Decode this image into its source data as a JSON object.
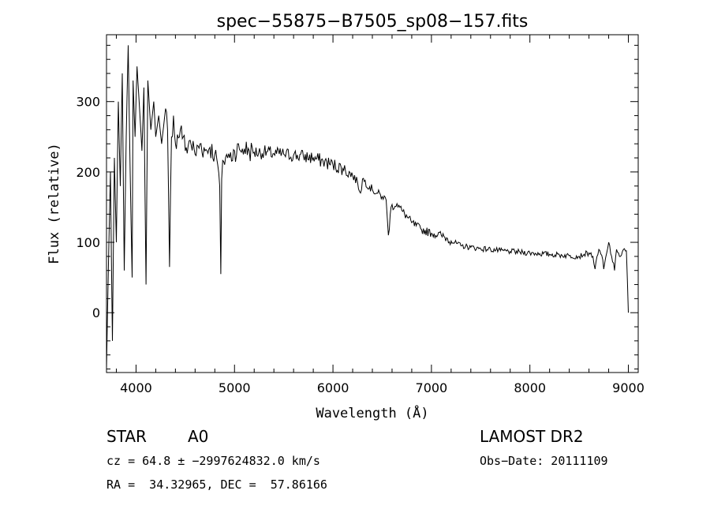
{
  "chart_data": {
    "type": "line",
    "title": "spec−55875−B7505_sp08−157.fits",
    "xlabel": "Wavelength (Å)",
    "ylabel": "Flux (relative)",
    "xlim": [
      3700,
      9100
    ],
    "ylim": [
      -85,
      395
    ],
    "xticks": [
      4000,
      5000,
      6000,
      7000,
      8000,
      9000
    ],
    "yticks": [
      0,
      100,
      200,
      300
    ],
    "grid": false,
    "series": [
      {
        "x": [
          3700,
          3720,
          3740,
          3760,
          3780,
          3800,
          3820,
          3840,
          3860,
          3880,
          3900,
          3920,
          3940,
          3960,
          3970,
          3990,
          4010,
          4040,
          4060,
          4080,
          4101,
          4120,
          4150,
          4180,
          4200,
          4230,
          4260,
          4300,
          4320,
          4340,
          4360,
          4380,
          4400,
          4450,
          4480,
          4500,
          4550,
          4600,
          4650,
          4700,
          4750,
          4800,
          4830,
          4850,
          4861,
          4870,
          4890,
          4920,
          4950,
          5000,
          5050,
          5100,
          5150,
          5200,
          5300,
          5400,
          5500,
          5600,
          5700,
          5800,
          5900,
          6000,
          6100,
          6200,
          6250,
          6280,
          6300,
          6400,
          6500,
          6540,
          6563,
          6590,
          6650,
          6700,
          6800,
          6900,
          7000,
          7100,
          7200,
          7300,
          7400,
          7500,
          7600,
          7700,
          7800,
          7900,
          8000,
          8100,
          8200,
          8300,
          8400,
          8500,
          8550,
          8600,
          8640,
          8662,
          8700,
          8740,
          8750,
          8780,
          8800,
          8830,
          8860,
          8880,
          8900,
          8920,
          8950,
          8980,
          9000
        ],
        "y": [
          -80,
          70,
          200,
          -40,
          220,
          100,
          300,
          180,
          340,
          60,
          250,
          380,
          200,
          50,
          330,
          250,
          350,
          280,
          230,
          320,
          40,
          330,
          260,
          300,
          250,
          280,
          240,
          290,
          260,
          65,
          250,
          280,
          240,
          260,
          250,
          230,
          245,
          225,
          240,
          230,
          235,
          225,
          210,
          180,
          55,
          190,
          215,
          225,
          220,
          230,
          232,
          233,
          230,
          228,
          228,
          226,
          225,
          224,
          222,
          220,
          215,
          210,
          205,
          195,
          185,
          170,
          190,
          175,
          165,
          160,
          110,
          150,
          155,
          145,
          128,
          118,
          113,
          110,
          102,
          95,
          93,
          91,
          90,
          88,
          87,
          86,
          85,
          84,
          83,
          82,
          81,
          80,
          83,
          85,
          80,
          62,
          90,
          75,
          62,
          85,
          100,
          80,
          60,
          90,
          85,
          80,
          90,
          88,
          0
        ]
      }
    ]
  },
  "info": {
    "object_class": "STAR",
    "subclass": "A0",
    "survey": "LAMOST DR2",
    "redshift": "cz = 64.8 ± −2997624832.0 km/s",
    "obs_date": "Obs−Date: 20111109",
    "coords": "RA =  34.32965, DEC =  57.86166"
  }
}
